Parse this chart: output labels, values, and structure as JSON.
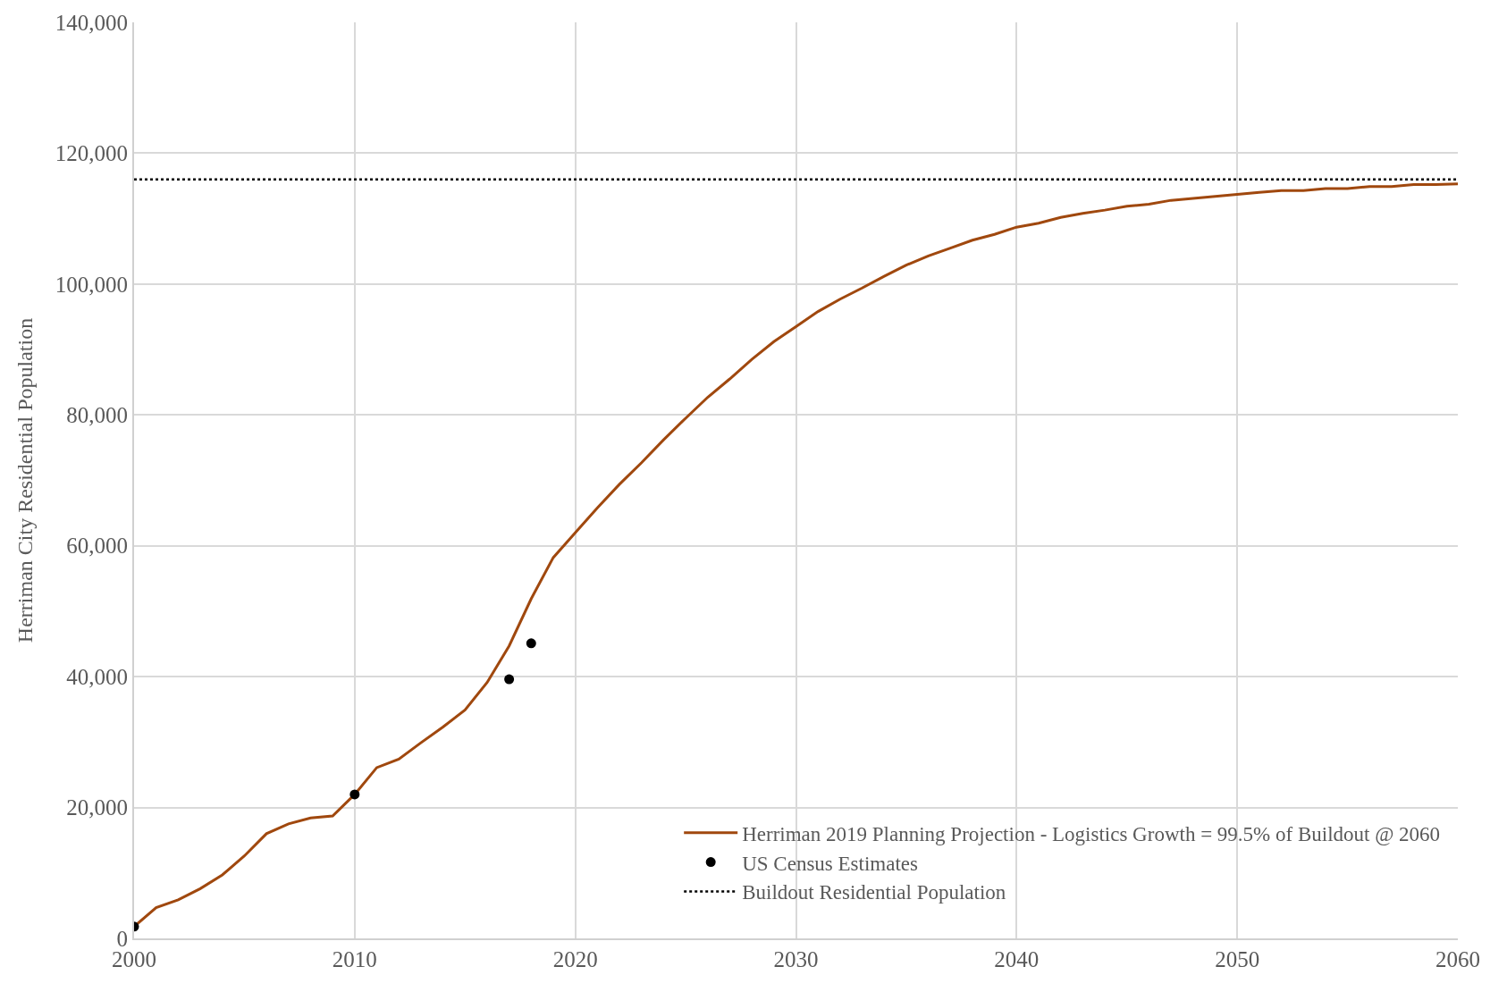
{
  "chart_data": {
    "type": "line",
    "ylabel": "Herriman City Residential Population",
    "xlim": [
      2000,
      2060
    ],
    "xticks": [
      2000,
      2010,
      2020,
      2030,
      2040,
      2050,
      2060
    ],
    "ylim": [
      0,
      140000
    ],
    "yticks": [
      {
        "value": 0,
        "label": "0"
      },
      {
        "value": 20000,
        "label": "20,000"
      },
      {
        "value": 40000,
        "label": "40,000"
      },
      {
        "value": 60000,
        "label": "60,000"
      },
      {
        "value": 80000,
        "label": "80,000"
      },
      {
        "value": 100000,
        "label": "100,000"
      },
      {
        "value": 120000,
        "label": "120,000"
      },
      {
        "value": 140000,
        "label": "140,000"
      }
    ],
    "grid": true,
    "legend": "bottom right",
    "series": [
      {
        "name": "Herriman 2019 Planning Projection - Logistics Growth = 99.5% of Buildout @ 2060",
        "color": "#a0480e",
        "line_style": "solid",
        "marker": "none",
        "x": [
          2000,
          2001,
          2002,
          2003,
          2004,
          2005,
          2006,
          2007,
          2008,
          2009,
          2010,
          2011,
          2012,
          2013,
          2014,
          2015,
          2016,
          2017,
          2018,
          2019,
          2020,
          2021,
          2022,
          2023,
          2024,
          2025,
          2026,
          2027,
          2028,
          2029,
          2030,
          2031,
          2032,
          2033,
          2034,
          2035,
          2036,
          2037,
          2038,
          2039,
          2040,
          2041,
          2042,
          2043,
          2044,
          2045,
          2046,
          2047,
          2048,
          2049,
          2050,
          2051,
          2052,
          2053,
          2054,
          2055,
          2056,
          2057,
          2058,
          2059,
          2060
        ],
        "values": [
          1800,
          4700,
          5900,
          7600,
          9700,
          12600,
          16000,
          17500,
          18400,
          18700,
          22000,
          26100,
          27400,
          29900,
          32300,
          34900,
          39100,
          44700,
          51900,
          58200,
          62000,
          65800,
          69400,
          72700,
          76200,
          79500,
          82700,
          85500,
          88500,
          91200,
          93500,
          95800,
          97700,
          99400,
          101200,
          102900,
          104300,
          105500,
          106700,
          107600,
          108700,
          109300,
          110200,
          110800,
          111300,
          111900,
          112200,
          112800,
          113100,
          113400,
          113700,
          114000,
          114300,
          114300,
          114600,
          114600,
          114900,
          114900,
          115200,
          115200,
          115300
        ]
      },
      {
        "name": "US Census Estimates",
        "type": "scatter",
        "color": "#000000",
        "marker": "circle",
        "x": [
          2000,
          2010,
          2017,
          2018
        ],
        "values": [
          1800,
          22000,
          39600,
          45100
        ]
      }
    ],
    "ref_lines": [
      {
        "axis": "y",
        "value": 116000,
        "label": "Buildout Residential Population",
        "color": "#000000",
        "line_style": "dotted"
      }
    ]
  }
}
